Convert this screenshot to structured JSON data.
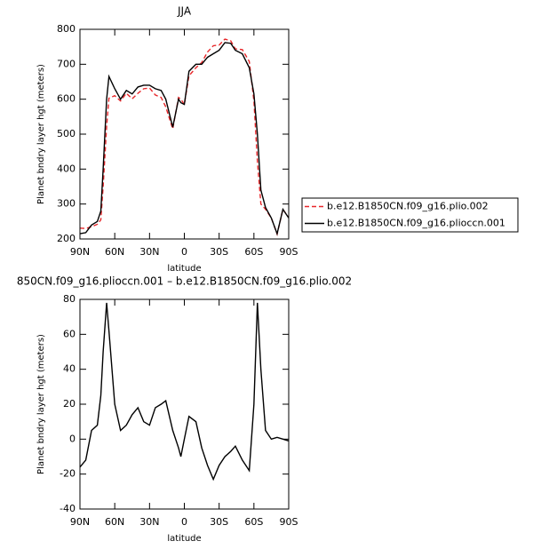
{
  "chart_data": [
    {
      "type": "line",
      "title": "JJA",
      "x_label": "latitude",
      "y_label": "Planet bndry layer hgt (meters)",
      "x": [
        90,
        85,
        80,
        75,
        72,
        70,
        67,
        65,
        60,
        55,
        50,
        45,
        40,
        35,
        30,
        25,
        20,
        16,
        10,
        5,
        3,
        0,
        -4,
        -10,
        -15,
        -20,
        -25,
        -30,
        -35,
        -40,
        -44,
        -50,
        -56,
        -60,
        -63,
        -66,
        -70,
        -75,
        -80,
        -85,
        -90
      ],
      "series": [
        {
          "name": "b.e12.B1850CN.f09_g16.plio.002",
          "color": "#e8272a",
          "linestyle": "dashed",
          "values": [
            231,
            230,
            235,
            242,
            255,
            350,
            522,
            603,
            610,
            595,
            617,
            601,
            617,
            630,
            632,
            612,
            605,
            578,
            515,
            605,
            600,
            585,
            667,
            690,
            705,
            735,
            753,
            755,
            772,
            767,
            744,
            742,
            708,
            595,
            422,
            300,
            285,
            260,
            214,
            285,
            261
          ]
        },
        {
          "name": "b.e12.B1850CN.f09_g16.plioccn.001",
          "color": "#000000",
          "linestyle": "solid",
          "values": [
            215,
            218,
            240,
            250,
            280,
            400,
            600,
            665,
            630,
            600,
            625,
            615,
            635,
            640,
            640,
            630,
            625,
            600,
            520,
            600,
            590,
            585,
            680,
            700,
            700,
            720,
            730,
            740,
            762,
            760,
            740,
            730,
            690,
            615,
            500,
            340,
            290,
            260,
            215,
            285,
            260
          ]
        }
      ],
      "xlim": [
        90,
        -90
      ],
      "xticks": [
        {
          "value": 90,
          "label": "90N"
        },
        {
          "value": 60,
          "label": "60N"
        },
        {
          "value": 30,
          "label": "30N"
        },
        0,
        {
          "value": -30,
          "label": "30S"
        },
        {
          "value": -60,
          "label": "60S"
        },
        {
          "value": -90,
          "label": "90S"
        }
      ],
      "ylim": [
        200,
        800
      ],
      "yticks": [
        200,
        300,
        400,
        500,
        600,
        700,
        800
      ],
      "legend": "right"
    },
    {
      "type": "line",
      "title": "850CN.f09_g16.plioccn.001 – b.e12.B1850CN.f09_g16.plio.002",
      "x_label": "latitude",
      "y_label": "Planet bndry layer hgt (meters)",
      "x": [
        90,
        85,
        80,
        75,
        72,
        70,
        67,
        65,
        60,
        55,
        50,
        45,
        40,
        35,
        30,
        25,
        20,
        16,
        10,
        5,
        3,
        0,
        -4,
        -10,
        -15,
        -20,
        -25,
        -30,
        -35,
        -40,
        -44,
        -50,
        -56,
        -60,
        -63,
        -66,
        -70,
        -75,
        -80,
        -85,
        -90
      ],
      "values": [
        -16,
        -12,
        5,
        8,
        25,
        50,
        78,
        62,
        20,
        5,
        8,
        14,
        18,
        10,
        8,
        18,
        20,
        22,
        5,
        -5,
        -10,
        0,
        13,
        10,
        -5,
        -15,
        -23,
        -15,
        -10,
        -7,
        -4,
        -12,
        -18,
        20,
        78,
        40,
        5,
        0,
        1,
        0,
        -1
      ],
      "color": "#000000",
      "xlim": [
        90,
        -90
      ],
      "xticks": [
        {
          "value": 90,
          "label": "90N"
        },
        {
          "value": 60,
          "label": "60N"
        },
        {
          "value": 30,
          "label": "30N"
        },
        0,
        {
          "value": -30,
          "label": "30S"
        },
        {
          "value": -60,
          "label": "60S"
        },
        {
          "value": -90,
          "label": "90S"
        }
      ],
      "ylim": [
        -40,
        80
      ],
      "yticks": [
        -40,
        -20,
        0,
        20,
        40,
        60,
        80
      ]
    }
  ]
}
